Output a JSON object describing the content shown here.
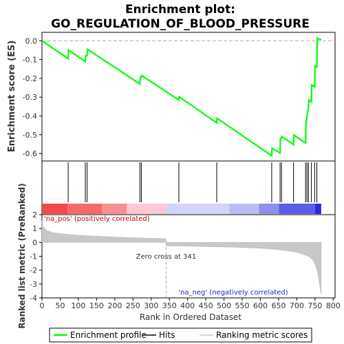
{
  "chart_data": [
    {
      "type": "line",
      "title_line1": "Enrichment plot:",
      "title_line2": "GO_REGULATION_OF_BLOOD_PRESSURE",
      "ylabel": "Enrichment score (ES)",
      "yticks": [
        "0.0",
        "-0.1",
        "-0.2",
        "-0.3",
        "-0.4",
        "-0.5",
        "-0.6"
      ],
      "ylim": [
        -0.64,
        0.045
      ],
      "xlim": [
        0,
        805
      ],
      "series": [
        {
          "name": "Enrichment profile",
          "color": "#00ff00",
          "x": [
            0,
            72,
            73,
            119,
            120,
            124,
            125,
            269,
            270,
            273,
            274,
            376,
            377,
            480,
            481,
            631,
            632,
            654,
            655,
            658,
            659,
            691,
            692,
            724,
            725,
            728,
            729,
            732,
            733,
            740,
            741,
            749,
            750,
            755,
            756,
            767
          ],
          "y": [
            0.0,
            -0.095,
            -0.05,
            -0.11,
            -0.08,
            -0.078,
            -0.045,
            -0.23,
            -0.195,
            -0.194,
            -0.185,
            -0.315,
            -0.298,
            -0.437,
            -0.413,
            -0.612,
            -0.572,
            -0.598,
            -0.52,
            -0.518,
            -0.51,
            -0.553,
            -0.502,
            -0.545,
            -0.44,
            -0.395,
            -0.39,
            -0.355,
            -0.315,
            -0.325,
            -0.235,
            -0.245,
            -0.135,
            -0.14,
            0.015,
            0.005
          ]
        }
      ]
    },
    {
      "type": "scatter",
      "name": "Hits",
      "hit_positions": [
        72,
        119,
        124,
        269,
        273,
        376,
        480,
        631,
        654,
        658,
        691,
        724,
        728,
        732,
        740,
        749,
        755
      ]
    },
    {
      "type": "area",
      "ylabel": "Ranked list metric (PreRanked)",
      "xlabel": "Rank in Ordered Dataset",
      "yticks": [
        "2",
        "1",
        "0",
        "-1",
        "-2",
        "-3",
        "-4"
      ],
      "xticks": [
        "0",
        "50",
        "100",
        "150",
        "200",
        "250",
        "300",
        "350",
        "400",
        "450",
        "500",
        "550",
        "600",
        "650",
        "700",
        "750",
        "800"
      ],
      "ylim": [
        -4,
        2
      ],
      "zero_cross": 341,
      "zero_cross_label": "Zero cross at 341",
      "pos_label": "'na_pos' (positively correlated)",
      "neg_label": "'na_neg' (negatively correlated)",
      "profile_x": [
        0,
        3,
        8,
        15,
        30,
        60,
        100,
        150,
        200,
        250,
        300,
        340,
        341,
        342,
        400,
        450,
        500,
        550,
        600,
        640,
        680,
        700,
        720,
        735,
        745,
        752,
        757,
        761,
        764,
        767
      ],
      "profile_y": [
        1.55,
        1.15,
        1.0,
        0.85,
        0.7,
        0.6,
        0.52,
        0.45,
        0.39,
        0.34,
        0.3,
        0.27,
        0.0,
        -0.25,
        -0.27,
        -0.3,
        -0.33,
        -0.37,
        -0.42,
        -0.5,
        -0.62,
        -0.72,
        -0.88,
        -1.05,
        -1.3,
        -1.7,
        -2.2,
        -2.8,
        -3.3,
        -3.75
      ]
    }
  ],
  "legend": {
    "items": [
      {
        "label": "Enrichment profile",
        "color": "#00ff00"
      },
      {
        "label": "Hits",
        "color": "#000000"
      },
      {
        "label": "Ranking metric scores",
        "color": "#c8c8c8"
      }
    ]
  }
}
